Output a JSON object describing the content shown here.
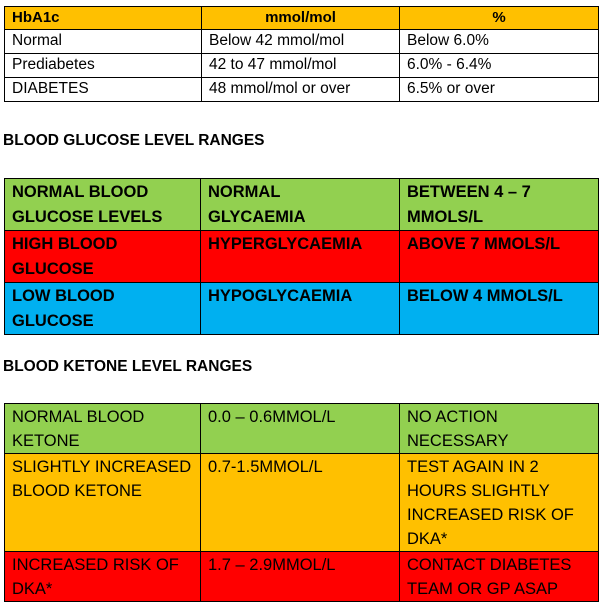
{
  "hba1c_table": {
    "headers": [
      "HbA1c",
      "mmol/mol",
      "%"
    ],
    "rows": [
      [
        "Normal",
        "Below 42 mmol/mol",
        "Below 6.0%"
      ],
      [
        "Prediabetes",
        "42 to 47 mmol/mol",
        "6.0% - 6.4%"
      ],
      [
        "DIABETES",
        "48 mmol/mol or over",
        "6.5% or over"
      ]
    ]
  },
  "glucose_heading": "BLOOD GLUCOSE LEVEL RANGES",
  "glucose_table": {
    "rows": [
      {
        "color": "#92d050",
        "cells": [
          "NORMAL BLOOD\nGLUCOSE LEVELS",
          "NORMAL\nGLYCAEMIA",
          "BETWEEN 4 – 7\nMMOLS/L"
        ]
      },
      {
        "color": "#ff0000",
        "cells": [
          "HIGH BLOOD\nGLUCOSE",
          " HYPERGLYCAEMIA",
          "ABOVE 7 MMOLS/L"
        ]
      },
      {
        "color": "#00b0f0",
        "cells": [
          "LOW BLOOD\nGLUCOSE",
          "HYPOGLYCAEMIA",
          "BELOW 4 MMOLS/L"
        ]
      }
    ]
  },
  "ketone_heading": "BLOOD KETONE LEVEL RANGES",
  "ketone_table": {
    "rows": [
      {
        "color": "#92d050",
        "cells": [
          "NORMAL BLOOD\nKETONE",
          "0.0 – 0.6MMOL/L",
          "NO ACTION\nNECESSARY"
        ]
      },
      {
        "color": "#ffc000",
        "cells": [
          "SLIGHTLY INCREASED\nBLOOD KETONE",
          "0.7-1.5MMOL/L",
          "TEST AGAIN IN 2\nHOURS SLIGHTLY\nINCREASED RISK OF\nDKA*"
        ]
      },
      {
        "color": "#ff0000",
        "cells": [
          "INCREASED RISK OF\nDKA*",
          "1.7 – 2.9MMOL/L",
          "CONTACT DIABETES\nTEAM OR GP ASAP"
        ]
      }
    ]
  }
}
